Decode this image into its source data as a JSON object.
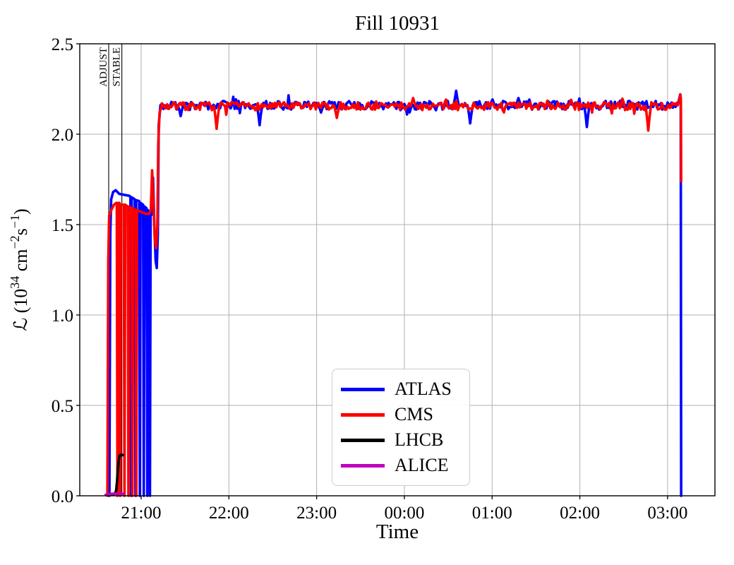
{
  "chart_data": {
    "type": "line",
    "title": "Fill 10931",
    "xlabel": "Time",
    "ylabel": "ℒ (10³⁴ cm⁻²s⁻¹)",
    "ylabel_parts": [
      {
        "t": "ℒ (10"
      },
      {
        "t": "34",
        "sup": true
      },
      {
        "t": " cm"
      },
      {
        "t": "−2",
        "sup": true
      },
      {
        "t": "s"
      },
      {
        "t": "−1",
        "sup": true
      },
      {
        "t": ")"
      }
    ],
    "x_axis": {
      "range": [
        20.3,
        27.54
      ],
      "unit": "time of day",
      "ticks": [
        {
          "value": 21,
          "label": "21:00"
        },
        {
          "value": 22,
          "label": "22:00"
        },
        {
          "value": 23,
          "label": "23:00"
        },
        {
          "value": 24,
          "label": "00:00"
        },
        {
          "value": 25,
          "label": "01:00"
        },
        {
          "value": 26,
          "label": "02:00"
        },
        {
          "value": 27,
          "label": "03:00"
        }
      ]
    },
    "y_axis": {
      "range": [
        0,
        2.5
      ],
      "ticks": [
        {
          "value": 0.0,
          "label": "0.0"
        },
        {
          "value": 0.5,
          "label": "0.5"
        },
        {
          "value": 1.0,
          "label": "1.0"
        },
        {
          "value": 1.5,
          "label": "1.5"
        },
        {
          "value": 2.0,
          "label": "2.0"
        },
        {
          "value": 2.5,
          "label": "2.5"
        }
      ]
    },
    "grid": {
      "show": true,
      "color": "#b0b0b0"
    },
    "legend": {
      "position": "lower center",
      "entries": [
        "ATLAS",
        "CMS",
        "LHCB",
        "ALICE"
      ]
    },
    "annotations": [
      {
        "x": 20.63,
        "label": "ADJUST"
      },
      {
        "x": 20.78,
        "label": "STABLE"
      }
    ],
    "series": [
      {
        "name": "ATLAS",
        "color": "#0000ff",
        "segments": [
          {
            "points": [
              [
                20.638,
                0
              ],
              [
                20.648,
                1.45
              ],
              [
                20.658,
                1.64
              ],
              [
                20.68,
                1.68
              ],
              [
                20.71,
                1.69
              ],
              [
                20.75,
                1.67
              ],
              [
                20.8,
                1.665
              ],
              [
                20.86,
                1.66
              ],
              [
                20.877,
                1.655
              ],
              [
                20.885,
                0
              ],
              [
                20.893,
                1.65
              ],
              [
                20.927,
                1.64
              ],
              [
                20.935,
                0
              ],
              [
                20.943,
                1.635
              ],
              [
                20.977,
                1.63
              ],
              [
                20.985,
                0
              ],
              [
                20.993,
                1.62
              ],
              [
                21.022,
                1.61
              ],
              [
                21.03,
                0
              ],
              [
                21.038,
                1.6
              ],
              [
                21.062,
                1.59
              ],
              [
                21.07,
                0
              ],
              [
                21.078,
                1.58
              ],
              [
                21.092,
                1.57
              ],
              [
                21.1,
                0
              ],
              [
                21.108,
                1.56
              ],
              [
                21.12,
                1.555
              ],
              [
                21.135,
                1.76
              ],
              [
                21.15,
                1.5
              ],
              [
                21.165,
                1.3
              ],
              [
                21.178,
                1.26
              ],
              [
                21.19,
                1.45
              ],
              [
                21.2,
                2.05
              ],
              [
                21.22,
                2.16
              ],
              [
                21.238,
                2.17
              ]
            ]
          },
          {
            "band": {
              "t0": 21.24,
              "t1": 27.115,
              "mean": 2.16,
              "amp": 0.024,
              "step": 0.015,
              "seed": 3,
              "events": [
                [
                  21.45,
                  2.1
                ],
                [
                  22.35,
                  2.05
                ],
                [
                  23.05,
                  2.12
                ],
                [
                  24.59,
                  2.24
                ],
                [
                  24.75,
                  2.06
                ],
                [
                  25.3,
                  2.2
                ],
                [
                  26.08,
                  2.04
                ]
              ]
            }
          },
          {
            "points": [
              [
                27.115,
                2.16
              ],
              [
                27.13,
                2.19
              ],
              [
                27.145,
                2.22
              ],
              [
                27.15,
                2.2
              ],
              [
                27.155,
                0
              ]
            ]
          }
        ]
      },
      {
        "name": "CMS",
        "color": "#ff0000",
        "segments": [
          {
            "points": [
              [
                20.615,
                0
              ],
              [
                20.625,
                1.3
              ],
              [
                20.635,
                1.55
              ],
              [
                20.66,
                1.58
              ],
              [
                20.69,
                1.61
              ],
              [
                20.715,
                1.62
              ],
              [
                20.722,
                1.62
              ],
              [
                20.73,
                0
              ],
              [
                20.738,
                1.62
              ],
              [
                20.752,
                1.62
              ],
              [
                20.76,
                0
              ],
              [
                20.768,
                1.61
              ],
              [
                20.802,
                1.61
              ],
              [
                20.81,
                0
              ],
              [
                20.818,
                1.61
              ],
              [
                20.847,
                1.6
              ],
              [
                20.855,
                0
              ],
              [
                20.863,
                1.6
              ],
              [
                20.892,
                1.59
              ],
              [
                20.9,
                0
              ],
              [
                20.908,
                1.59
              ],
              [
                20.937,
                1.58
              ],
              [
                20.945,
                0
              ],
              [
                20.953,
                1.58
              ],
              [
                21.0,
                1.57
              ],
              [
                21.05,
                1.56
              ],
              [
                21.09,
                1.56
              ],
              [
                21.11,
                1.58
              ],
              [
                21.125,
                1.8
              ],
              [
                21.14,
                1.62
              ],
              [
                21.155,
                1.42
              ],
              [
                21.17,
                1.37
              ],
              [
                21.185,
                1.5
              ],
              [
                21.195,
                1.95
              ],
              [
                21.21,
                2.12
              ],
              [
                21.232,
                2.15
              ]
            ]
          },
          {
            "band": {
              "t0": 21.235,
              "t1": 27.115,
              "mean": 2.155,
              "amp": 0.022,
              "step": 0.015,
              "seed": 7,
              "events": [
                [
                  21.86,
                  2.03
                ],
                [
                  23.23,
                  2.09
                ],
                [
                  24.1,
                  2.2
                ],
                [
                  25.9,
                  2.19
                ],
                [
                  26.78,
                  2.02
                ]
              ]
            }
          },
          {
            "points": [
              [
                27.115,
                2.16
              ],
              [
                27.13,
                2.18
              ],
              [
                27.145,
                2.22
              ],
              [
                27.152,
                2.18
              ],
              [
                27.155,
                1.74
              ]
            ]
          }
        ]
      },
      {
        "name": "LHCB",
        "color": "#000000",
        "segments": [
          {
            "points": [
              [
                20.63,
                0.004
              ],
              [
                20.67,
                0.006
              ],
              [
                20.7,
                0.01
              ],
              [
                20.715,
                0.03
              ],
              [
                20.725,
                0.08
              ],
              [
                20.735,
                0.15
              ],
              [
                20.745,
                0.2
              ],
              [
                20.755,
                0.222
              ],
              [
                20.775,
                0.228
              ],
              [
                20.79,
                0.225
              ]
            ]
          }
        ]
      },
      {
        "name": "ALICE",
        "color": "#bf00bf",
        "segments": [
          {
            "points": [
              [
                20.595,
                0.006
              ],
              [
                20.63,
                0.01
              ],
              [
                20.7,
                0.012
              ],
              [
                20.76,
                0.012
              ],
              [
                20.8,
                0.01
              ]
            ]
          }
        ]
      }
    ]
  }
}
